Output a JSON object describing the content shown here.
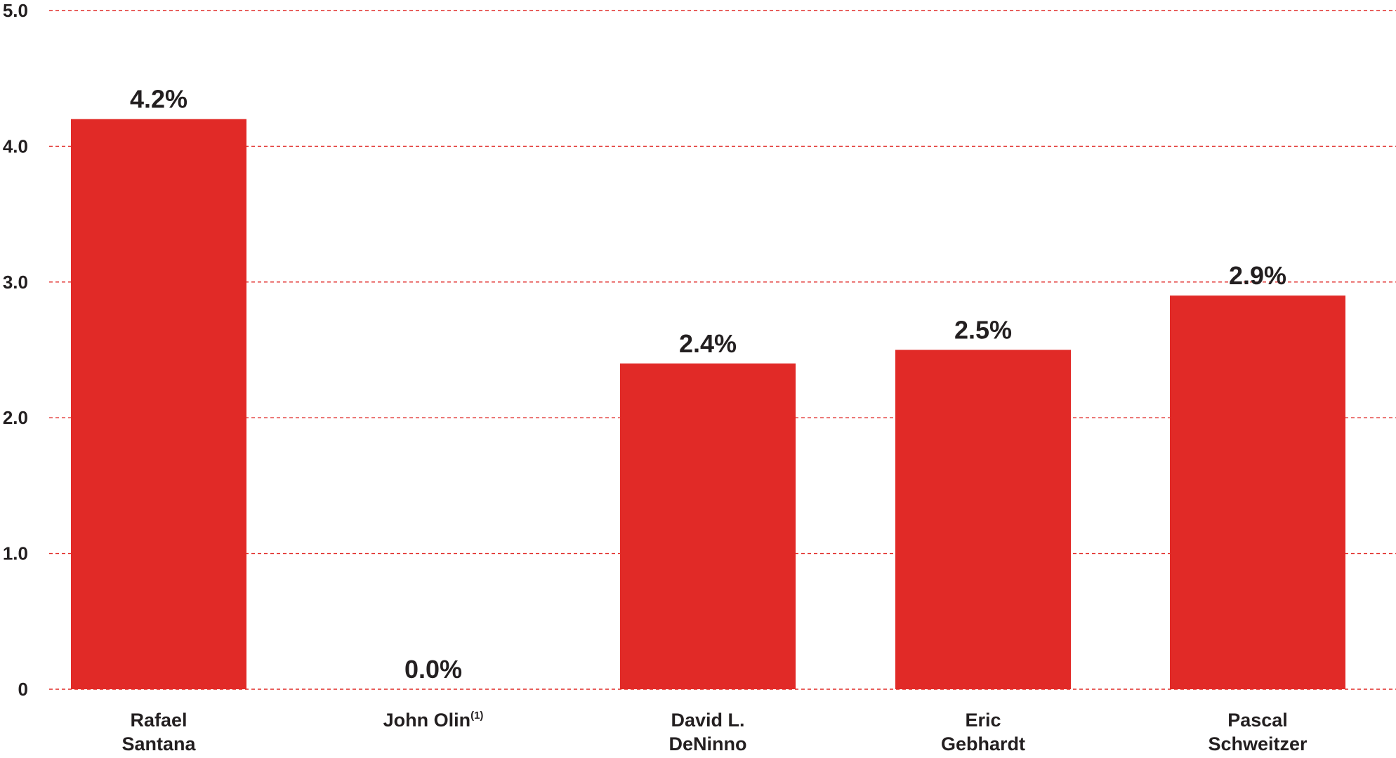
{
  "chart_data": {
    "type": "bar",
    "categories": [
      [
        "Rafael",
        "Santana"
      ],
      [
        "John Olin"
      ],
      [
        "David L.",
        "DeNinno"
      ],
      [
        "Eric",
        "Gebhardt"
      ],
      [
        "Pascal",
        "Schweitzer"
      ]
    ],
    "category_footnotes": [
      "",
      "(1)",
      "",
      "",
      ""
    ],
    "values": [
      4.2,
      0.0,
      2.4,
      2.5,
      2.9
    ],
    "data_labels": [
      "4.2%",
      "0.0%",
      "2.4%",
      "2.5%",
      "2.9%"
    ],
    "yticks": [
      0,
      1.0,
      2.0,
      3.0,
      4.0,
      5.0
    ],
    "ytick_labels": [
      "0",
      "1.0",
      "2.0",
      "3.0",
      "4.0",
      "5.0"
    ],
    "ylim": [
      0,
      5.0
    ],
    "title": "",
    "xlabel": "",
    "ylabel": "",
    "grid": true,
    "grid_style": "dashed",
    "legend": "none",
    "colors": {
      "bar": "#e12a27",
      "grid": "#e12a27",
      "text": "#231f20"
    }
  }
}
